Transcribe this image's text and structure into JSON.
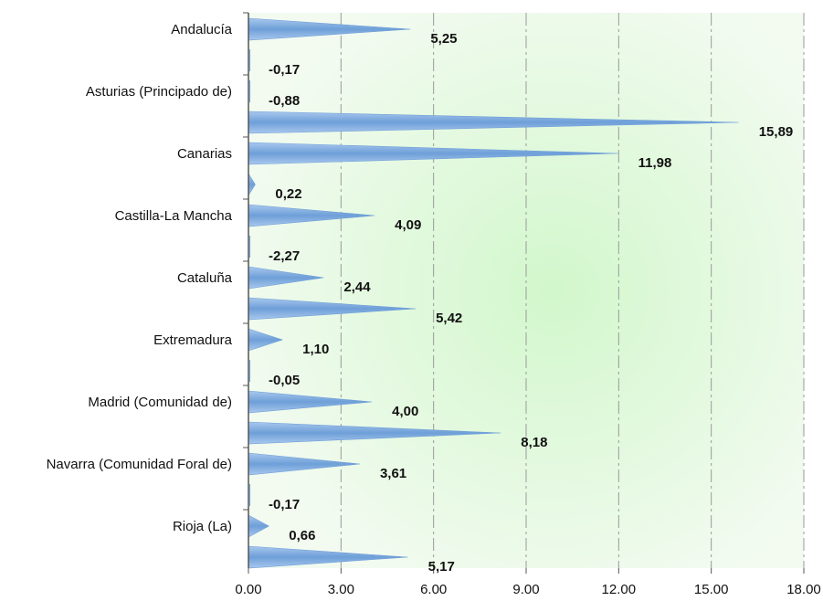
{
  "chart_data": {
    "type": "bar",
    "orientation": "horizontal",
    "bar_style": "spike",
    "categories": [
      "Andalucía",
      "",
      "Asturias (Principado de)",
      "",
      "Canarias",
      "",
      "Castilla-La Mancha",
      "",
      "Cataluña",
      "",
      "Extremadura",
      "",
      "Madrid (Comunidad de)",
      "",
      "Navarra (Comunidad Foral de)",
      "",
      "Rioja (La)",
      ""
    ],
    "values": [
      5.25,
      -0.17,
      -0.88,
      15.89,
      11.98,
      0.22,
      4.09,
      -2.27,
      2.44,
      5.42,
      1.1,
      -0.05,
      4.0,
      8.18,
      3.61,
      -0.17,
      0.66,
      5.17
    ],
    "data_labels": [
      "5,25",
      "-0,17",
      "-0,88",
      "15,89",
      "11,98",
      "0,22",
      "4,09",
      "-2,27",
      "2,44",
      "5,42",
      "1,10",
      "-0,05",
      "4,00",
      "8,18",
      "3,61",
      "-0,17",
      "0,66",
      "5,17"
    ],
    "x_ticks": [
      0,
      3,
      6,
      9,
      12,
      15,
      18
    ],
    "x_tick_labels": [
      "0.00",
      "3.00",
      "6.00",
      "9.00",
      "12.00",
      "15.00",
      "18.00"
    ],
    "xlim": [
      0,
      18
    ],
    "grid": true,
    "title": "",
    "xlabel": "",
    "ylabel": "",
    "colors": {
      "bar": "#6e9fd8",
      "bar_highlight": "#a9c8ee",
      "plot_bg_center": "#d2f7cc",
      "plot_bg_edge": "#f3fbf1",
      "grid": "#9a9a9a",
      "axis": "#555555"
    }
  }
}
